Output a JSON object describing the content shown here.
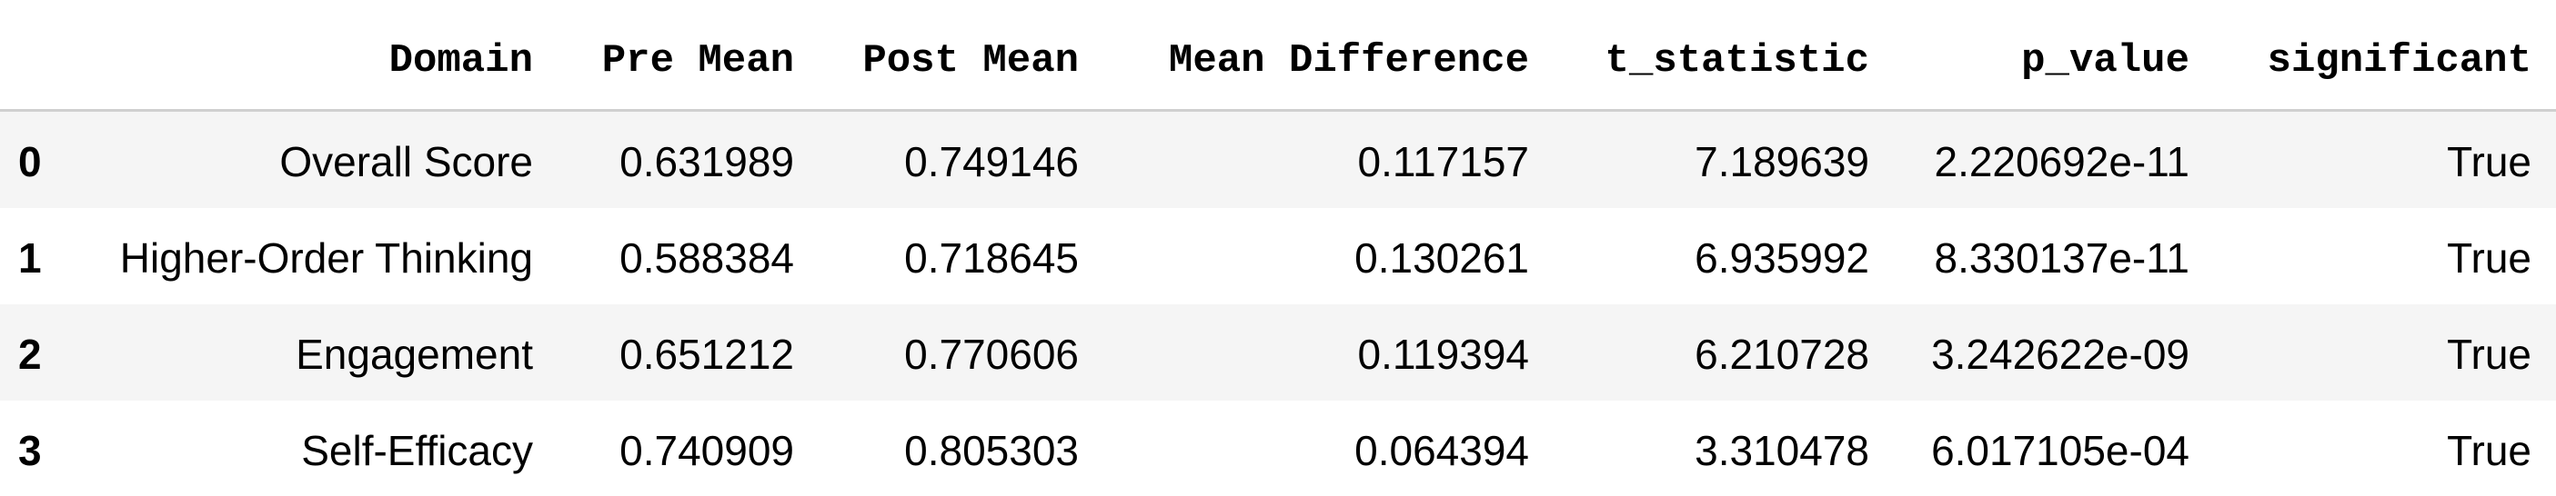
{
  "table": {
    "columns": [
      "Domain",
      "Pre Mean",
      "Post Mean",
      "Mean Difference",
      "t_statistic",
      "p_value",
      "significant"
    ],
    "rows": [
      {
        "index": 0,
        "cells": [
          "Overall Score",
          "0.631989",
          "0.749146",
          "0.117157",
          "7.189639",
          "2.220692e-11",
          "True"
        ]
      },
      {
        "index": 1,
        "cells": [
          "Higher-Order Thinking",
          "0.588384",
          "0.718645",
          "0.130261",
          "6.935992",
          "8.330137e-11",
          "True"
        ]
      },
      {
        "index": 2,
        "cells": [
          "Engagement",
          "0.651212",
          "0.770606",
          "0.119394",
          "6.210728",
          "3.242622e-09",
          "True"
        ]
      },
      {
        "index": 3,
        "cells": [
          "Self-Efficacy",
          "0.740909",
          "0.805303",
          "0.064394",
          "3.310478",
          "6.017105e-04",
          "True"
        ]
      }
    ]
  }
}
